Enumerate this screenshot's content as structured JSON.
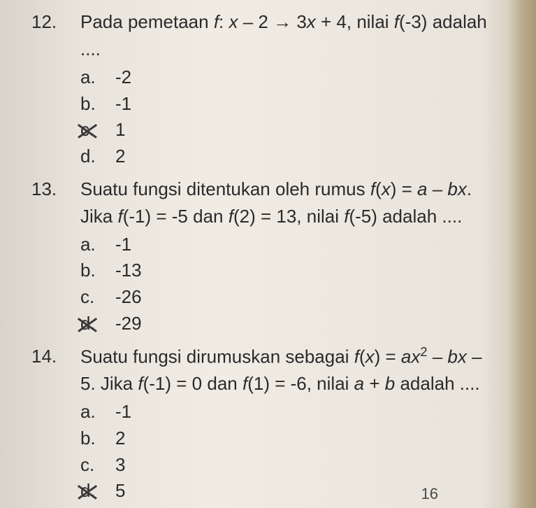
{
  "styling": {
    "background_gradient": [
      "#d8d4cc",
      "#e8e4dc",
      "#f0ece4",
      "#e8e4dc",
      "#c8bca4"
    ],
    "font_family": "Arial",
    "font_size_pt": 26,
    "text_color": "#2a2a2a",
    "cross_color": "#3a3a3a",
    "line_height": 1.5
  },
  "questions": [
    {
      "number": "12.",
      "text_parts": [
        "Pada pemetaan ",
        "f",
        ": ",
        "x",
        " – 2 → 3",
        "x",
        " + 4, nilai ",
        "f",
        "(-3) adalah ...."
      ],
      "options": [
        {
          "letter": "a.",
          "value": "-2",
          "crossed": false
        },
        {
          "letter": "b.",
          "value": "-1",
          "crossed": false
        },
        {
          "letter": "c.",
          "value": "1",
          "crossed": true
        },
        {
          "letter": "d.",
          "value": "2",
          "crossed": false
        }
      ]
    },
    {
      "number": "13.",
      "text_html": "Suatu fungsi ditentukan oleh rumus <span class=\"italic\">f</span>(<span class=\"italic\">x</span>) = <span class=\"italic\">a</span> – <span class=\"italic\">bx</span>. Jika <span class=\"italic\">f</span>(-1) = -5 dan <span class=\"italic\">f</span>(2) = 13, nilai <span class=\"italic\">f</span>(-5) adalah ....",
      "options": [
        {
          "letter": "a.",
          "value": "-1",
          "crossed": false
        },
        {
          "letter": "b.",
          "value": "-13",
          "crossed": false
        },
        {
          "letter": "c.",
          "value": "-26",
          "crossed": false
        },
        {
          "letter": "d.",
          "value": "-29",
          "crossed": true
        }
      ]
    },
    {
      "number": "14.",
      "text_html": "Suatu fungsi dirumuskan sebagai <span class=\"italic\">f</span>(<span class=\"italic\">x</span>) = <span class=\"italic\">ax</span><sup>2</sup> – <span class=\"italic\">bx</span> – 5. Jika <span class=\"italic\">f</span>(-1) = 0 dan <span class=\"italic\">f</span>(1) = -6, nilai <span class=\"italic\">a</span> + <span class=\"italic\">b</span> adalah ....",
      "options": [
        {
          "letter": "a.",
          "value": "-1",
          "crossed": false
        },
        {
          "letter": "b.",
          "value": "2",
          "crossed": false
        },
        {
          "letter": "c.",
          "value": "3",
          "crossed": false
        },
        {
          "letter": "d.",
          "value": "5",
          "crossed": true
        }
      ]
    }
  ],
  "bottom_fragment": "16"
}
